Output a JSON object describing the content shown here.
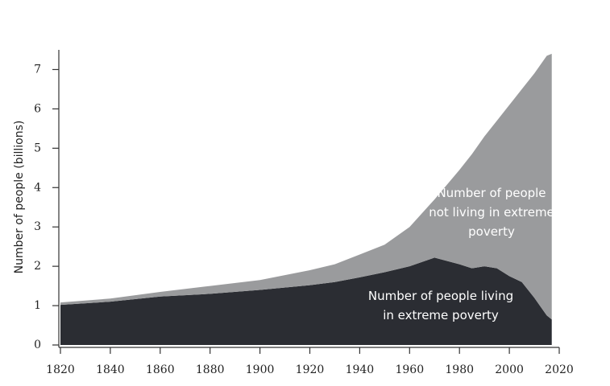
{
  "chart_data": {
    "type": "stacked_area",
    "y_label": "Number of people (billions)",
    "x": [
      1820,
      1840,
      1860,
      1880,
      1900,
      1920,
      1930,
      1940,
      1950,
      1960,
      1970,
      1980,
      1985,
      1990,
      1995,
      2000,
      2005,
      2010,
      2015,
      2017
    ],
    "series": [
      {
        "name": "Number of people living in extreme poverty",
        "color": "#2b2d33",
        "values": [
          1.02,
          1.1,
          1.23,
          1.3,
          1.4,
          1.52,
          1.6,
          1.72,
          1.85,
          2.0,
          2.22,
          2.05,
          1.95,
          2.0,
          1.95,
          1.75,
          1.6,
          1.2,
          0.75,
          0.65
        ]
      },
      {
        "name": "Number of people not living in extreme poverty",
        "color": "#9a9b9d",
        "values": [
          0.06,
          0.08,
          0.12,
          0.2,
          0.25,
          0.38,
          0.45,
          0.58,
          0.7,
          1.0,
          1.48,
          2.4,
          2.9,
          3.3,
          3.75,
          4.35,
          4.9,
          5.7,
          6.6,
          6.75
        ]
      }
    ],
    "xlim": [
      1820,
      2020
    ],
    "xticks": [
      1820,
      1840,
      1860,
      1880,
      1900,
      1920,
      1940,
      1960,
      1980,
      2000,
      2020
    ],
    "ylim": [
      0,
      7.5
    ],
    "yticks": [
      0,
      1,
      2,
      3,
      4,
      5,
      6,
      7
    ]
  }
}
